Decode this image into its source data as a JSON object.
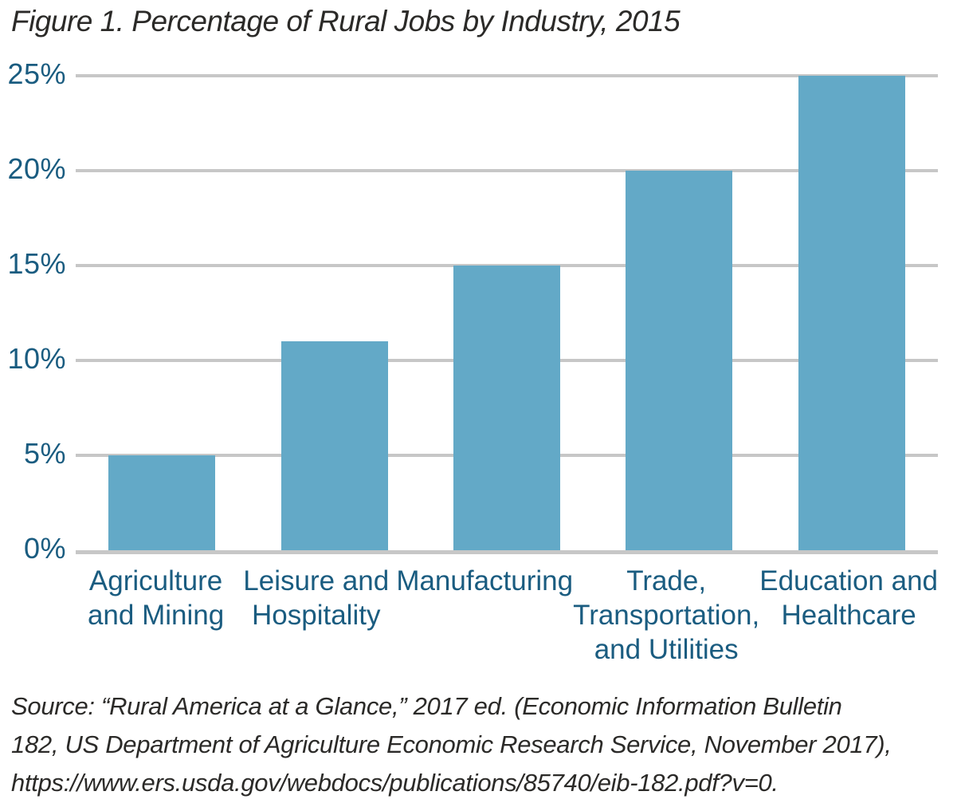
{
  "figure": {
    "title": "Figure 1. Percentage of Rural Jobs by Industry, 2015",
    "source_lines": [
      "Source: “Rural America at a Glance,” 2017 ed. (Economic Information Bulletin",
      "182, US Department of Agriculture Economic Research Service, November 2017),",
      "https://www.ers.usda.gov/webdocs/publications/85740/eib-182.pdf?v=0."
    ]
  },
  "colors": {
    "bar": "#63a9c7",
    "gridline": "#c7c7c7",
    "axis_label": "#1a5c80",
    "text": "#2b2a28"
  },
  "chart_data": {
    "type": "bar",
    "title": "Figure 1. Percentage of Rural Jobs by Industry, 2015",
    "categories": [
      "Agriculture and Mining",
      "Leisure and Hospitality",
      "Manufacturing",
      "Trade, Transportation, and Utilities",
      "Education and Healthcare"
    ],
    "category_label_lines": [
      "Agriculture\nand Mining",
      "Leisure and\nHospitality",
      "Manufacturing",
      "Trade,\nTransportation,\nand Utilities",
      "Education and\nHealthcare"
    ],
    "values": [
      5,
      11,
      15,
      20,
      25
    ],
    "xlabel": "",
    "ylabel": "",
    "ylim": [
      0,
      25
    ],
    "yticks": [
      0,
      5,
      10,
      15,
      20,
      25
    ],
    "ytick_labels": [
      "0%",
      "5%",
      "10%",
      "15%",
      "20%",
      "25%"
    ],
    "grid": true,
    "legend_position": "none",
    "bar_color": "#63a9c7"
  }
}
